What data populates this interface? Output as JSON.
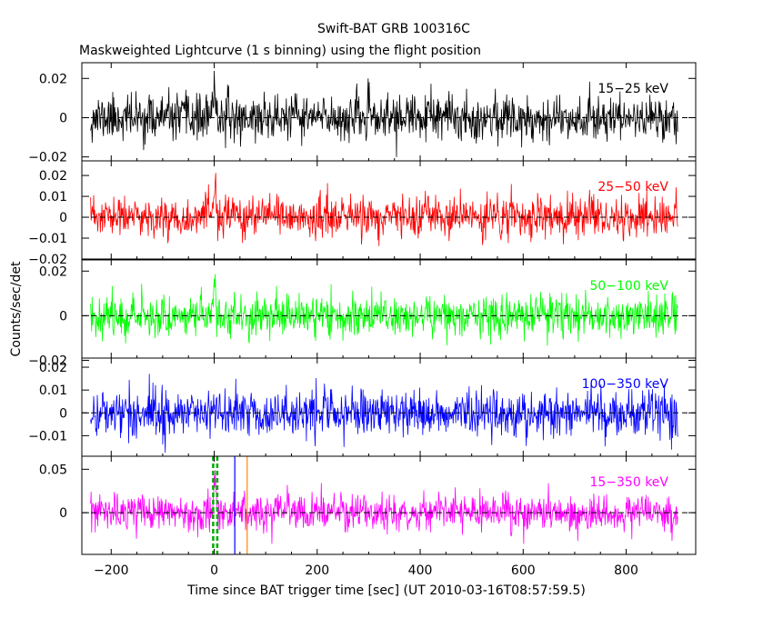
{
  "chart_data": {
    "type": "line",
    "title": "Swift-BAT GRB 100316C",
    "subtitle": "Maskweighted Lightcurve (1 s binning) using the flight position",
    "xlabel": "Time since BAT trigger time [sec] (UT 2010-03-16T08:57:59.5)",
    "ylabel": "Counts/sec/det",
    "xlim": [
      -257,
      935
    ],
    "x_ticks": [
      -200,
      0,
      200,
      400,
      600,
      800
    ],
    "x_tick_labels": [
      "−200",
      "0",
      "200",
      "400",
      "600",
      "800"
    ],
    "time_start": -240,
    "time_end": 900,
    "binning_s": 1,
    "panels": [
      {
        "band": "15-25 keV",
        "label": "15−25 keV",
        "color": "#000000",
        "ylim": [
          -0.022,
          0.028
        ],
        "y_ticks": [
          -0.02,
          0,
          0.02
        ],
        "y_tick_labels": [
          "−0.02",
          "0",
          "0.02"
        ],
        "noise_sigma": 0.0058,
        "burst_peak": 0.016,
        "seed": 11
      },
      {
        "band": "25-50 keV",
        "label": "25−50 keV",
        "color": "#ff0000",
        "ylim": [
          -0.02,
          0.027
        ],
        "y_ticks": [
          -0.02,
          -0.01,
          0,
          0.01,
          0.02
        ],
        "y_tick_labels": [
          "−0.02",
          "−0.01",
          "0",
          "0.01",
          "0.02"
        ],
        "noise_sigma": 0.0048,
        "burst_peak": 0.017,
        "seed": 23
      },
      {
        "band": "50-100 keV",
        "label": "50−100 keV",
        "color": "#00ff00",
        "ylim": [
          -0.019,
          0.025
        ],
        "y_ticks": [
          -0.02,
          0,
          0.02
        ],
        "y_tick_labels": [
          "−0.02",
          "0",
          "0.02"
        ],
        "noise_sigma": 0.0046,
        "burst_peak": 0.015,
        "seed": 37
      },
      {
        "band": "100-350 keV",
        "label": "100−350 keV",
        "color": "#0000ff",
        "ylim": [
          -0.019,
          0.024
        ],
        "y_ticks": [
          -0.01,
          0,
          0.01,
          0.02
        ],
        "y_tick_labels": [
          "−0.01",
          "0",
          "0.01",
          "0.02"
        ],
        "noise_sigma": 0.0052,
        "burst_peak": 0.004,
        "seed": 41
      },
      {
        "band": "15-350 keV",
        "label": "15−350 keV",
        "color": "#ff00ff",
        "ylim": [
          -0.048,
          0.065
        ],
        "y_ticks": [
          0,
          0.05
        ],
        "y_tick_labels": [
          "0",
          "0.05"
        ],
        "noise_sigma": 0.0105,
        "burst_peak": 0.05,
        "seed": 53
      }
    ],
    "markers": [
      {
        "name": "t90-start",
        "x": -2,
        "color": "#00aa00",
        "style": "dashed"
      },
      {
        "name": "t90-end",
        "x": 6,
        "color": "#00aa00",
        "style": "dashed"
      },
      {
        "name": "marker-blue",
        "x": 40,
        "color": "#0000ff",
        "style": "solid"
      },
      {
        "name": "marker-orange",
        "x": 64,
        "color": "#ff8800",
        "style": "solid"
      }
    ]
  }
}
